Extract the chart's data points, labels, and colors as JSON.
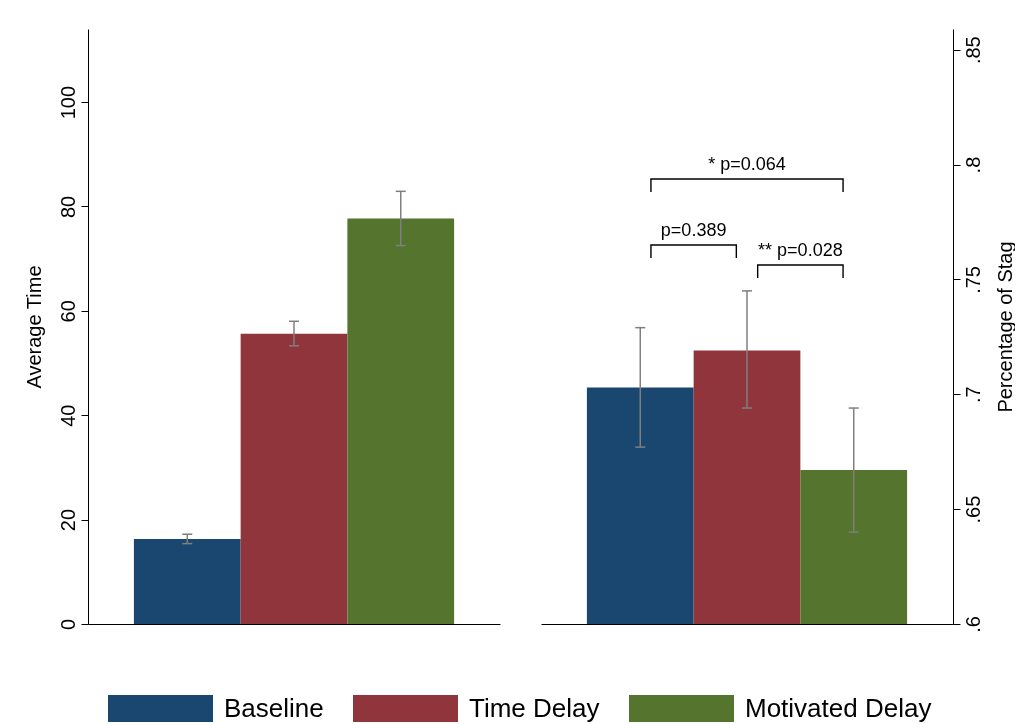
{
  "chart_data": [
    {
      "type": "bar",
      "categories": [
        null
      ],
      "ylabel": "Average Time",
      "ylim": [
        0,
        114
      ],
      "yticks": [
        0,
        20,
        40,
        60,
        80,
        100
      ],
      "legend": "bottom",
      "series": [
        {
          "name": "Baseline",
          "color": "#1a476f",
          "values": [
            16.3
          ],
          "errors": [
            [
              15.4,
              17.2
            ]
          ]
        },
        {
          "name": "Time Delay",
          "color": "#90353b",
          "values": [
            55.6
          ],
          "errors": [
            [
              53.3,
              58.0
            ]
          ]
        },
        {
          "name": "Motivated Delay",
          "color": "#55752f",
          "values": [
            77.7
          ],
          "errors": [
            [
              72.5,
              82.9
            ]
          ]
        }
      ]
    },
    {
      "type": "bar",
      "categories": [
        null
      ],
      "ylabel": "Percentage of Stag",
      "ylim": [
        0.6,
        0.859
      ],
      "yticks": [
        {
          "value": 0.6,
          "label": ".6"
        },
        {
          "value": 0.65,
          "label": ".65"
        },
        {
          "value": 0.7,
          "label": ".7"
        },
        {
          "value": 0.75,
          "label": ".75"
        },
        {
          "value": 0.8,
          "label": ".8"
        },
        {
          "value": 0.85,
          "label": ".85"
        }
      ],
      "series": [
        {
          "name": "Baseline",
          "color": "#1a476f",
          "values": [
            0.703
          ],
          "errors": [
            [
              0.677,
              0.729
            ]
          ]
        },
        {
          "name": "Time Delay",
          "color": "#90353b",
          "values": [
            0.719
          ],
          "errors": [
            [
              0.694,
              0.745
            ]
          ]
        },
        {
          "name": "Motivated Delay",
          "color": "#55752f",
          "values": [
            0.667
          ],
          "errors": [
            [
              0.64,
              0.694
            ]
          ]
        }
      ],
      "annotations": [
        "* p=0.064",
        "p=0.389",
        "** p=0.028"
      ]
    }
  ]
}
